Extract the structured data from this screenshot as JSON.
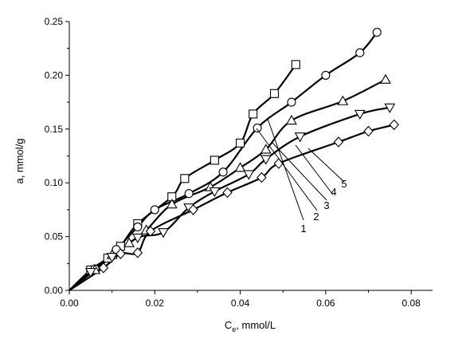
{
  "chart_data": {
    "type": "line",
    "xlabel": {
      "main": "C",
      "sub": "e",
      "rest": ", mmol/L"
    },
    "ylabel": "a, mmol/g",
    "xlim": [
      0,
      0.085
    ],
    "ylim": [
      0,
      0.25
    ],
    "xticks": [
      "0.00",
      "0.02",
      "0.04",
      "0.06",
      "0.08"
    ],
    "yticks": [
      "0.00",
      "0.05",
      "0.10",
      "0.15",
      "0.20",
      "0.25"
    ],
    "series": [
      {
        "name": "1",
        "marker": "square",
        "x": [
          0,
          0.005,
          0.009,
          0.012,
          0.016,
          0.024,
          0.027,
          0.034,
          0.04,
          0.043,
          0.048,
          0.053
        ],
        "y": [
          0,
          0.019,
          0.03,
          0.041,
          0.062,
          0.087,
          0.104,
          0.121,
          0.137,
          0.164,
          0.183,
          0.21
        ]
      },
      {
        "name": "2",
        "marker": "circle",
        "x": [
          0,
          0.006,
          0.011,
          0.016,
          0.02,
          0.028,
          0.036,
          0.044,
          0.052,
          0.06,
          0.068,
          0.072
        ],
        "y": [
          0,
          0.02,
          0.038,
          0.059,
          0.075,
          0.09,
          0.11,
          0.151,
          0.175,
          0.2,
          0.221,
          0.24
        ]
      },
      {
        "name": "3",
        "marker": "triangle-up",
        "x": [
          0,
          0.006,
          0.01,
          0.014,
          0.018,
          0.024,
          0.033,
          0.04,
          0.046,
          0.052,
          0.064,
          0.074
        ],
        "y": [
          0,
          0.019,
          0.033,
          0.044,
          0.056,
          0.08,
          0.096,
          0.114,
          0.131,
          0.158,
          0.176,
          0.196
        ]
      },
      {
        "name": "4",
        "marker": "triangle-down",
        "x": [
          0,
          0.005,
          0.01,
          0.016,
          0.022,
          0.028,
          0.034,
          0.042,
          0.046,
          0.054,
          0.068,
          0.075
        ],
        "y": [
          0,
          0.017,
          0.031,
          0.049,
          0.054,
          0.077,
          0.092,
          0.108,
          0.122,
          0.143,
          0.164,
          0.17
        ]
      },
      {
        "name": "5",
        "marker": "diamond",
        "x": [
          0,
          0.008,
          0.012,
          0.016,
          0.019,
          0.029,
          0.037,
          0.045,
          0.049,
          0.063,
          0.07,
          0.076
        ],
        "y": [
          0,
          0.021,
          0.034,
          0.035,
          0.055,
          0.075,
          0.091,
          0.105,
          0.118,
          0.138,
          0.148,
          0.154
        ]
      }
    ]
  }
}
